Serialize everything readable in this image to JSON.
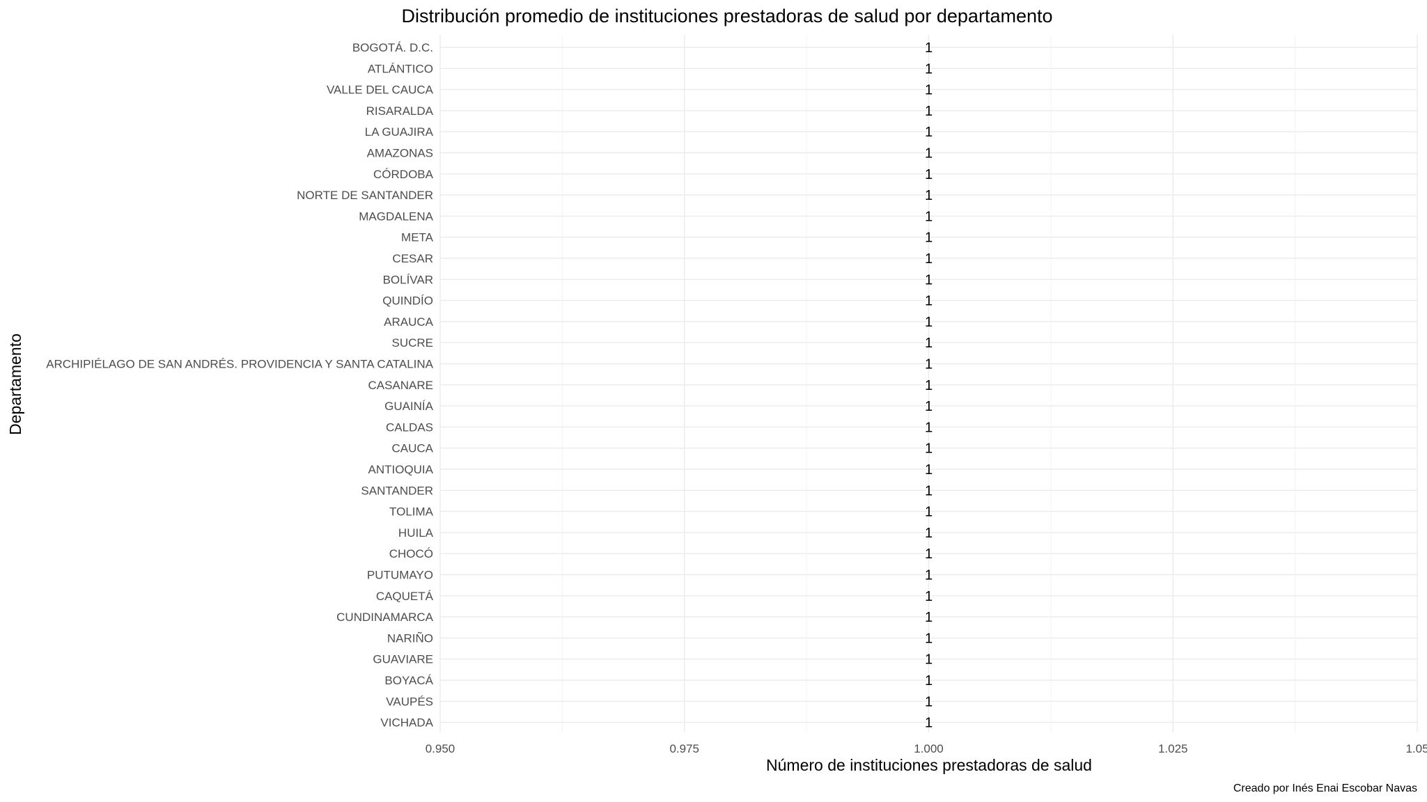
{
  "chart_data": {
    "type": "bar",
    "orientation": "horizontal",
    "title": "Distribución promedio de instituciones prestadoras de salud por departamento",
    "xlabel": "Número de instituciones prestadoras de salud",
    "ylabel": "Departamento",
    "caption": "Creado por Inés Enai Escobar Navas",
    "xlim": [
      0.95,
      1.05
    ],
    "xticks": [
      "0.950",
      "0.975",
      "1.000",
      "1.025",
      "1.05"
    ],
    "xtick_values": [
      0.95,
      0.975,
      1.0,
      1.025,
      1.05
    ],
    "grid": true,
    "categories": [
      "BOGOTÁ. D.C.",
      "ATLÁNTICO",
      "VALLE DEL CAUCA",
      "RISARALDA",
      "LA GUAJIRA",
      "AMAZONAS",
      "CÓRDOBA",
      "NORTE DE SANTANDER",
      "MAGDALENA",
      "META",
      "CESAR",
      "BOLÍVAR",
      "QUINDÍO",
      "ARAUCA",
      "SUCRE",
      "ARCHIPIÉLAGO DE SAN ANDRÉS. PROVIDENCIA Y SANTA CATALINA",
      "CASANARE",
      "GUAINÍA",
      "CALDAS",
      "CAUCA",
      "ANTIOQUIA",
      "SANTANDER",
      "TOLIMA",
      "HUILA",
      "CHOCÓ",
      "PUTUMAYO",
      "CAQUETÁ",
      "CUNDINAMARCA",
      "NARIÑO",
      "GUAVIARE",
      "BOYACÁ",
      "VAUPÉS",
      "VICHADA"
    ],
    "values": [
      1,
      1,
      1,
      1,
      1,
      1,
      1,
      1,
      1,
      1,
      1,
      1,
      1,
      1,
      1,
      1,
      1,
      1,
      1,
      1,
      1,
      1,
      1,
      1,
      1,
      1,
      1,
      1,
      1,
      1,
      1,
      1,
      1
    ],
    "data_labels": [
      "1",
      "1",
      "1",
      "1",
      "1",
      "1",
      "1",
      "1",
      "1",
      "1",
      "1",
      "1",
      "1",
      "1",
      "1",
      "1",
      "1",
      "1",
      "1",
      "1",
      "1",
      "1",
      "1",
      "1",
      "1",
      "1",
      "1",
      "1",
      "1",
      "1",
      "1",
      "1",
      "1"
    ]
  }
}
